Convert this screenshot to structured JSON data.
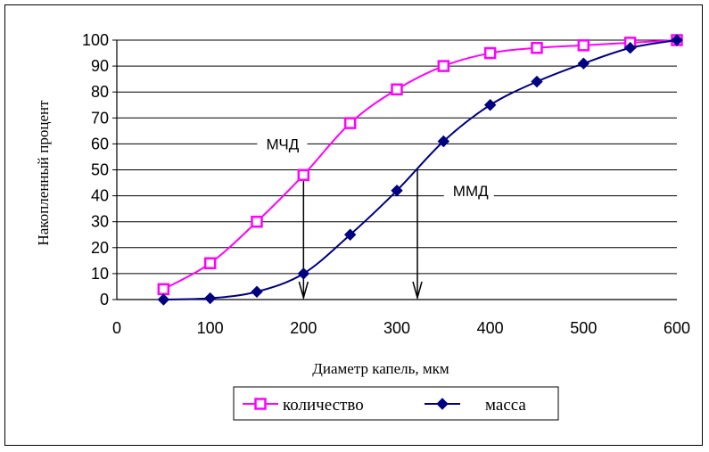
{
  "chart_data": {
    "type": "line",
    "xlabel": "Диаметр капель, мкм",
    "ylabel": "Накопленный процент",
    "xlim": [
      0,
      600
    ],
    "ylim": [
      0,
      100
    ],
    "x_ticks": [
      0,
      100,
      200,
      300,
      400,
      500,
      600
    ],
    "y_ticks": [
      0,
      10,
      20,
      30,
      40,
      50,
      60,
      70,
      80,
      90,
      100
    ],
    "grid": "horizontal",
    "legend_position": "bottom",
    "series": [
      {
        "name": "количество",
        "color": "#ff00ff",
        "marker": "open-square",
        "x": [
          50,
          100,
          150,
          200,
          250,
          300,
          350,
          400,
          450,
          500,
          550,
          600
        ],
        "y": [
          4,
          14,
          30,
          48,
          68,
          81,
          90,
          95,
          97,
          98,
          99,
          100
        ]
      },
      {
        "name": "масса",
        "color": "#000080",
        "marker": "diamond",
        "x": [
          50,
          100,
          150,
          200,
          250,
          300,
          350,
          400,
          450,
          500,
          550,
          600
        ],
        "y": [
          0,
          0.5,
          3,
          10,
          25,
          42,
          61,
          75,
          84,
          91,
          97,
          100
        ]
      }
    ],
    "annotations": [
      {
        "label": "МЧД",
        "x": 200,
        "y": 48,
        "text_at": [
          160,
          60
        ],
        "arrow_to_y": 0
      },
      {
        "label": "ММД",
        "x": 322,
        "y": 50,
        "text_at": [
          360,
          42
        ],
        "arrow_to_y": 0
      }
    ]
  }
}
